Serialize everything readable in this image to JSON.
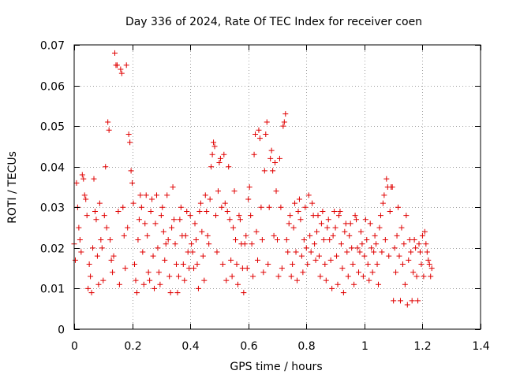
{
  "chart_data": {
    "type": "scatter",
    "title": "Day 336 of 2024, Rate Of TEC Index for receiver coen",
    "xlabel": "GPS time / hours",
    "ylabel": "ROTI / TECUs",
    "xlim": [
      0,
      1.4
    ],
    "ylim": [
      0,
      0.07
    ],
    "xticks": [
      0,
      0.2,
      0.4,
      0.6,
      0.8,
      1,
      1.2,
      1.4
    ],
    "xtick_labels": [
      "0",
      "0.2",
      "0.4",
      "0.6",
      "0.8",
      "1",
      "1.2",
      "1.4"
    ],
    "yticks": [
      0,
      0.01,
      0.02,
      0.03,
      0.04,
      0.05,
      0.06,
      0.07
    ],
    "ytick_labels": [
      "0",
      "0.01",
      "0.02",
      "0.03",
      "0.04",
      "0.05",
      "0.06",
      "0.07"
    ],
    "grid": true,
    "marker": "+",
    "marker_color": "#e00000",
    "series": [
      {
        "name": "ROTI",
        "points": [
          [
            0.0,
            0.021
          ],
          [
            0.004,
            0.017
          ],
          [
            0.008,
            0.036
          ],
          [
            0.012,
            0.03
          ],
          [
            0.016,
            0.025
          ],
          [
            0.02,
            0.022
          ],
          [
            0.024,
            0.019
          ],
          [
            0.028,
            0.038
          ],
          [
            0.032,
            0.037
          ],
          [
            0.036,
            0.033
          ],
          [
            0.04,
            0.032
          ],
          [
            0.044,
            0.028
          ],
          [
            0.048,
            0.01
          ],
          [
            0.052,
            0.016
          ],
          [
            0.056,
            0.013
          ],
          [
            0.06,
            0.009
          ],
          [
            0.064,
            0.02
          ],
          [
            0.068,
            0.037
          ],
          [
            0.072,
            0.029
          ],
          [
            0.076,
            0.027
          ],
          [
            0.08,
            0.018
          ],
          [
            0.084,
            0.011
          ],
          [
            0.088,
            0.031
          ],
          [
            0.092,
            0.022
          ],
          [
            0.096,
            0.02
          ],
          [
            0.1,
            0.012
          ],
          [
            0.104,
            0.028
          ],
          [
            0.108,
            0.04
          ],
          [
            0.112,
            0.025
          ],
          [
            0.116,
            0.051
          ],
          [
            0.12,
            0.049
          ],
          [
            0.124,
            0.022
          ],
          [
            0.128,
            0.017
          ],
          [
            0.132,
            0.014
          ],
          [
            0.136,
            0.018
          ],
          [
            0.14,
            0.068
          ],
          [
            0.144,
            0.065
          ],
          [
            0.148,
            0.065
          ],
          [
            0.152,
            0.029
          ],
          [
            0.156,
            0.011
          ],
          [
            0.16,
            0.064
          ],
          [
            0.164,
            0.063
          ],
          [
            0.168,
            0.03
          ],
          [
            0.172,
            0.023
          ],
          [
            0.176,
            0.015
          ],
          [
            0.18,
            0.065
          ],
          [
            0.184,
            0.025
          ],
          [
            0.188,
            0.048
          ],
          [
            0.192,
            0.046
          ],
          [
            0.196,
            0.039
          ],
          [
            0.2,
            0.036
          ],
          [
            0.204,
            0.031
          ],
          [
            0.208,
            0.016
          ],
          [
            0.212,
            0.012
          ],
          [
            0.216,
            0.009
          ],
          [
            0.22,
            0.022
          ],
          [
            0.224,
            0.027
          ],
          [
            0.228,
            0.033
          ],
          [
            0.232,
            0.03
          ],
          [
            0.236,
            0.019
          ],
          [
            0.24,
            0.011
          ],
          [
            0.244,
            0.026
          ],
          [
            0.248,
            0.033
          ],
          [
            0.252,
            0.023
          ],
          [
            0.256,
            0.014
          ],
          [
            0.26,
            0.012
          ],
          [
            0.264,
            0.029
          ],
          [
            0.268,
            0.032
          ],
          [
            0.272,
            0.018
          ],
          [
            0.276,
            0.01
          ],
          [
            0.28,
            0.026
          ],
          [
            0.284,
            0.033
          ],
          [
            0.288,
            0.02
          ],
          [
            0.292,
            0.014
          ],
          [
            0.296,
            0.011
          ],
          [
            0.3,
            0.028
          ],
          [
            0.304,
            0.03
          ],
          [
            0.308,
            0.024
          ],
          [
            0.312,
            0.017
          ],
          [
            0.316,
            0.021
          ],
          [
            0.32,
            0.033
          ],
          [
            0.324,
            0.022
          ],
          [
            0.328,
            0.013
          ],
          [
            0.332,
            0.009
          ],
          [
            0.336,
            0.025
          ],
          [
            0.34,
            0.035
          ],
          [
            0.344,
            0.027
          ],
          [
            0.348,
            0.021
          ],
          [
            0.352,
            0.016
          ],
          [
            0.356,
            0.009
          ],
          [
            0.36,
            0.013
          ],
          [
            0.364,
            0.027
          ],
          [
            0.368,
            0.03
          ],
          [
            0.372,
            0.023
          ],
          [
            0.376,
            0.016
          ],
          [
            0.38,
            0.012
          ],
          [
            0.384,
            0.023
          ],
          [
            0.388,
            0.029
          ],
          [
            0.392,
            0.019
          ],
          [
            0.396,
            0.015
          ],
          [
            0.4,
            0.028
          ],
          [
            0.404,
            0.021
          ],
          [
            0.408,
            0.019
          ],
          [
            0.412,
            0.015
          ],
          [
            0.416,
            0.026
          ],
          [
            0.42,
            0.022
          ],
          [
            0.424,
            0.016
          ],
          [
            0.428,
            0.01
          ],
          [
            0.432,
            0.029
          ],
          [
            0.436,
            0.031
          ],
          [
            0.44,
            0.024
          ],
          [
            0.444,
            0.018
          ],
          [
            0.448,
            0.012
          ],
          [
            0.452,
            0.033
          ],
          [
            0.456,
            0.029
          ],
          [
            0.46,
            0.023
          ],
          [
            0.464,
            0.021
          ],
          [
            0.468,
            0.032
          ],
          [
            0.472,
            0.04
          ],
          [
            0.476,
            0.043
          ],
          [
            0.48,
            0.046
          ],
          [
            0.484,
            0.045
          ],
          [
            0.488,
            0.028
          ],
          [
            0.492,
            0.019
          ],
          [
            0.496,
            0.034
          ],
          [
            0.5,
            0.041
          ],
          [
            0.504,
            0.042
          ],
          [
            0.508,
            0.03
          ],
          [
            0.512,
            0.016
          ],
          [
            0.516,
            0.043
          ],
          [
            0.52,
            0.031
          ],
          [
            0.524,
            0.012
          ],
          [
            0.528,
            0.029
          ],
          [
            0.532,
            0.04
          ],
          [
            0.536,
            0.027
          ],
          [
            0.54,
            0.017
          ],
          [
            0.544,
            0.013
          ],
          [
            0.548,
            0.025
          ],
          [
            0.552,
            0.034
          ],
          [
            0.556,
            0.022
          ],
          [
            0.56,
            0.016
          ],
          [
            0.564,
            0.011
          ],
          [
            0.568,
            0.028
          ],
          [
            0.572,
            0.027
          ],
          [
            0.576,
            0.021
          ],
          [
            0.58,
            0.015
          ],
          [
            0.584,
            0.009
          ],
          [
            0.588,
            0.021
          ],
          [
            0.592,
            0.023
          ],
          [
            0.596,
            0.015
          ],
          [
            0.6,
            0.032
          ],
          [
            0.604,
            0.035
          ],
          [
            0.608,
            0.028
          ],
          [
            0.612,
            0.021
          ],
          [
            0.616,
            0.013
          ],
          [
            0.62,
            0.043
          ],
          [
            0.624,
            0.048
          ],
          [
            0.628,
            0.024
          ],
          [
            0.632,
            0.017
          ],
          [
            0.636,
            0.049
          ],
          [
            0.64,
            0.047
          ],
          [
            0.644,
            0.03
          ],
          [
            0.648,
            0.022
          ],
          [
            0.652,
            0.014
          ],
          [
            0.656,
            0.039
          ],
          [
            0.66,
            0.048
          ],
          [
            0.664,
            0.051
          ],
          [
            0.668,
            0.016
          ],
          [
            0.672,
            0.03
          ],
          [
            0.676,
            0.042
          ],
          [
            0.68,
            0.044
          ],
          [
            0.684,
            0.039
          ],
          [
            0.688,
            0.023
          ],
          [
            0.692,
            0.041
          ],
          [
            0.696,
            0.034
          ],
          [
            0.7,
            0.022
          ],
          [
            0.704,
            0.013
          ],
          [
            0.708,
            0.042
          ],
          [
            0.712,
            0.03
          ],
          [
            0.716,
            0.015
          ],
          [
            0.72,
            0.05
          ],
          [
            0.724,
            0.051
          ],
          [
            0.728,
            0.053
          ],
          [
            0.732,
            0.022
          ],
          [
            0.736,
            0.019
          ],
          [
            0.74,
            0.026
          ],
          [
            0.744,
            0.028
          ],
          [
            0.748,
            0.013
          ],
          [
            0.752,
            0.016
          ],
          [
            0.756,
            0.025
          ],
          [
            0.76,
            0.031
          ],
          [
            0.764,
            0.019
          ],
          [
            0.768,
            0.012
          ],
          [
            0.772,
            0.029
          ],
          [
            0.776,
            0.032
          ],
          [
            0.78,
            0.027
          ],
          [
            0.784,
            0.018
          ],
          [
            0.788,
            0.014
          ],
          [
            0.792,
            0.022
          ],
          [
            0.796,
            0.03
          ],
          [
            0.8,
            0.02
          ],
          [
            0.804,
            0.016
          ],
          [
            0.808,
            0.033
          ],
          [
            0.812,
            0.023
          ],
          [
            0.816,
            0.019
          ],
          [
            0.82,
            0.031
          ],
          [
            0.824,
            0.028
          ],
          [
            0.828,
            0.021
          ],
          [
            0.832,
            0.017
          ],
          [
            0.836,
            0.024
          ],
          [
            0.84,
            0.028
          ],
          [
            0.844,
            0.018
          ],
          [
            0.848,
            0.013
          ],
          [
            0.852,
            0.026
          ],
          [
            0.856,
            0.029
          ],
          [
            0.86,
            0.022
          ],
          [
            0.864,
            0.016
          ],
          [
            0.868,
            0.012
          ],
          [
            0.872,
            0.025
          ],
          [
            0.876,
            0.027
          ],
          [
            0.88,
            0.022
          ],
          [
            0.884,
            0.017
          ],
          [
            0.888,
            0.01
          ],
          [
            0.892,
            0.023
          ],
          [
            0.896,
            0.029
          ],
          [
            0.9,
            0.025
          ],
          [
            0.904,
            0.018
          ],
          [
            0.908,
            0.011
          ],
          [
            0.912,
            0.028
          ],
          [
            0.916,
            0.029
          ],
          [
            0.92,
            0.021
          ],
          [
            0.924,
            0.015
          ],
          [
            0.928,
            0.009
          ],
          [
            0.932,
            0.024
          ],
          [
            0.936,
            0.026
          ],
          [
            0.94,
            0.019
          ],
          [
            0.944,
            0.013
          ],
          [
            0.948,
            0.023
          ],
          [
            0.952,
            0.026
          ],
          [
            0.956,
            0.02
          ],
          [
            0.96,
            0.016
          ],
          [
            0.964,
            0.011
          ],
          [
            0.968,
            0.028
          ],
          [
            0.972,
            0.027
          ],
          [
            0.976,
            0.02
          ],
          [
            0.98,
            0.014
          ],
          [
            0.984,
            0.019
          ],
          [
            0.988,
            0.024
          ],
          [
            0.992,
            0.021
          ],
          [
            0.996,
            0.013
          ],
          [
            1.0,
            0.018
          ],
          [
            1.004,
            0.027
          ],
          [
            1.008,
            0.022
          ],
          [
            1.012,
            0.016
          ],
          [
            1.016,
            0.012
          ],
          [
            1.02,
            0.026
          ],
          [
            1.024,
            0.02
          ],
          [
            1.028,
            0.014
          ],
          [
            1.032,
            0.019
          ],
          [
            1.036,
            0.023
          ],
          [
            1.04,
            0.021
          ],
          [
            1.044,
            0.016
          ],
          [
            1.048,
            0.011
          ],
          [
            1.052,
            0.025
          ],
          [
            1.056,
            0.028
          ],
          [
            1.06,
            0.019
          ],
          [
            1.064,
            0.031
          ],
          [
            1.068,
            0.033
          ],
          [
            1.072,
            0.022
          ],
          [
            1.076,
            0.037
          ],
          [
            1.08,
            0.035
          ],
          [
            1.084,
            0.018
          ],
          [
            1.088,
            0.029
          ],
          [
            1.092,
            0.035
          ],
          [
            1.096,
            0.035
          ],
          [
            1.1,
            0.007
          ],
          [
            1.104,
            0.02
          ],
          [
            1.108,
            0.014
          ],
          [
            1.112,
            0.023
          ],
          [
            1.116,
            0.03
          ],
          [
            1.12,
            0.018
          ],
          [
            1.124,
            0.007
          ],
          [
            1.128,
            0.025
          ],
          [
            1.132,
            0.016
          ],
          [
            1.136,
            0.021
          ],
          [
            1.14,
            0.011
          ],
          [
            1.144,
            0.028
          ],
          [
            1.148,
            0.006
          ],
          [
            1.152,
            0.017
          ],
          [
            1.156,
            0.022
          ],
          [
            1.16,
            0.019
          ],
          [
            1.164,
            0.007
          ],
          [
            1.168,
            0.014
          ],
          [
            1.172,
            0.022
          ],
          [
            1.176,
            0.02
          ],
          [
            1.18,
            0.013
          ],
          [
            1.184,
            0.007
          ],
          [
            1.188,
            0.021
          ],
          [
            1.192,
            0.019
          ],
          [
            1.196,
            0.016
          ],
          [
            1.2,
            0.023
          ],
          [
            1.204,
            0.013
          ],
          [
            1.208,
            0.024
          ],
          [
            1.212,
            0.021
          ],
          [
            1.216,
            0.019
          ],
          [
            1.22,
            0.017
          ],
          [
            1.224,
            0.016
          ],
          [
            1.228,
            0.013
          ],
          [
            1.232,
            0.015
          ]
        ]
      }
    ]
  }
}
